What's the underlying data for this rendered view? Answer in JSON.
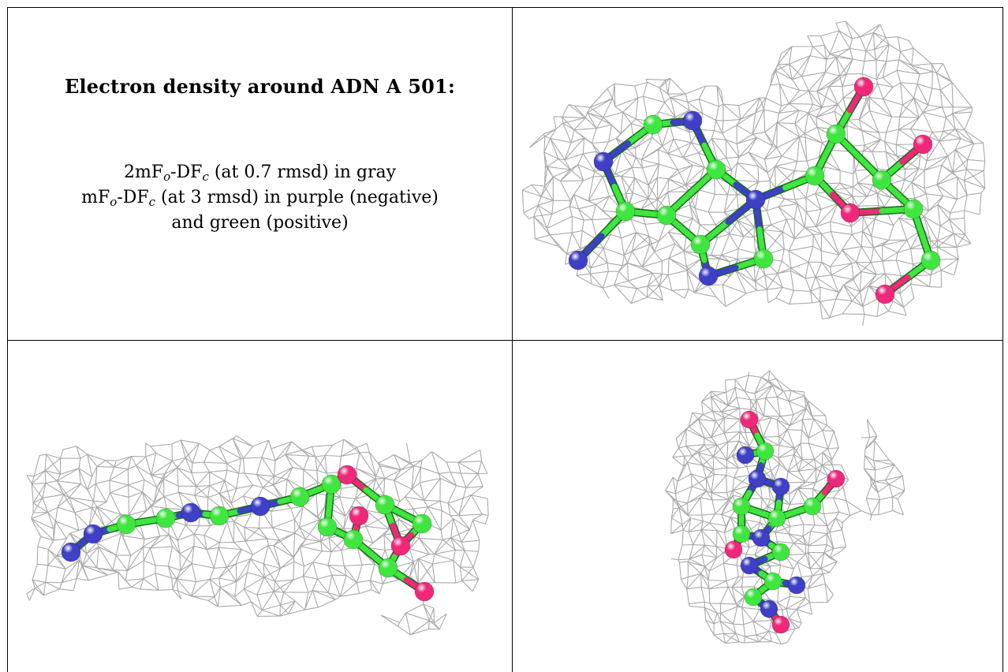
{
  "caption": {
    "title": "Electron density around ADN A 501:",
    "line1": "2mF",
    "line1_sub1": "o",
    "line1_mid": "-DF",
    "line1_sub2": "c",
    "line1_tail": " (at 0.7 rmsd) in gray",
    "line2": "mF",
    "line2_sub1": "o",
    "line2_mid": "-DF",
    "line2_sub2": "c",
    "line2_tail": " (at 3 rmsd) in purple (negative)",
    "line3": "and green (positive)"
  },
  "colors": {
    "mesh": "#a9a9a9",
    "carbon": "#3fe63f",
    "nitrogen": "#3f3fc8",
    "oxygen": "#f0287a"
  }
}
